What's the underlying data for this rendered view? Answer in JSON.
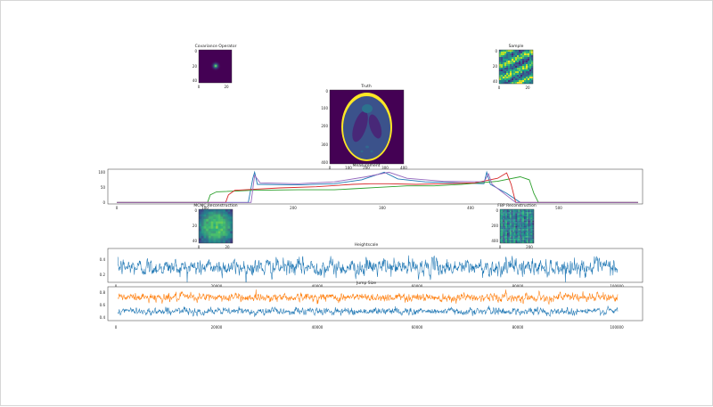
{
  "chart_data": [
    {
      "type": "heatmap",
      "title": "Covariance Operator",
      "x_ticks": [
        "0",
        "20"
      ],
      "y_ticks": [
        "0",
        "20",
        "40"
      ],
      "colormap": "viridis",
      "description_values": {
        "background": 0.0,
        "peak": 1.0
      }
    },
    {
      "type": "heatmap",
      "title": "Sample",
      "x_ticks": [
        "0",
        "20"
      ],
      "y_ticks": [
        "0",
        "20",
        "40"
      ],
      "colormap": "viridis"
    },
    {
      "type": "heatmap",
      "title": "Truth",
      "x_ticks": [
        "0",
        "100",
        "200",
        "300",
        "400"
      ],
      "y_ticks": [
        "0",
        "100",
        "200",
        "300",
        "400"
      ],
      "colormap": "viridis"
    },
    {
      "type": "line",
      "title": "Measurement",
      "x_ticks": [
        "0",
        "100",
        "200",
        "300",
        "400",
        "500"
      ],
      "y_ticks": [
        "0",
        "50",
        "100"
      ],
      "xlim": [
        -10,
        580
      ],
      "ylim": [
        -5,
        110
      ],
      "series": [
        {
          "color": "#1f77b4",
          "points": [
            [
              0,
              0
            ],
            [
              145,
              0
            ],
            [
              150,
              80
            ],
            [
              152,
              100
            ],
            [
              155,
              60
            ],
            [
              200,
              58
            ],
            [
              240,
              62
            ],
            [
              270,
              75
            ],
            [
              285,
              90
            ],
            [
              295,
              100
            ],
            [
              310,
              78
            ],
            [
              340,
              68
            ],
            [
              375,
              65
            ],
            [
              405,
              62
            ],
            [
              408,
              100
            ],
            [
              412,
              60
            ],
            [
              430,
              30
            ],
            [
              445,
              0
            ],
            [
              575,
              0
            ]
          ]
        },
        {
          "color": "#2ca02c",
          "points": [
            [
              0,
              0
            ],
            [
              100,
              0
            ],
            [
              103,
              25
            ],
            [
              110,
              35
            ],
            [
              150,
              40
            ],
            [
              200,
              42
            ],
            [
              240,
              42
            ],
            [
              260,
              45
            ],
            [
              290,
              50
            ],
            [
              320,
              55
            ],
            [
              350,
              55
            ],
            [
              380,
              60
            ],
            [
              420,
              70
            ],
            [
              445,
              85
            ],
            [
              455,
              75
            ],
            [
              460,
              30
            ],
            [
              465,
              0
            ],
            [
              575,
              0
            ]
          ]
        },
        {
          "color": "#d62728",
          "points": [
            [
              0,
              0
            ],
            [
              120,
              0
            ],
            [
              123,
              25
            ],
            [
              130,
              40
            ],
            [
              180,
              48
            ],
            [
              220,
              52
            ],
            [
              260,
              60
            ],
            [
              280,
              62
            ],
            [
              300,
              62
            ],
            [
              330,
              60
            ],
            [
              360,
              62
            ],
            [
              395,
              65
            ],
            [
              420,
              80
            ],
            [
              430,
              98
            ],
            [
              435,
              60
            ],
            [
              440,
              0
            ],
            [
              575,
              0
            ]
          ]
        },
        {
          "color": "#9467bd",
          "points": [
            [
              0,
              0
            ],
            [
              148,
              0
            ],
            [
              152,
              90
            ],
            [
              158,
              65
            ],
            [
              200,
              62
            ],
            [
              240,
              68
            ],
            [
              275,
              85
            ],
            [
              300,
              100
            ],
            [
              320,
              80
            ],
            [
              360,
              70
            ],
            [
              405,
              68
            ],
            [
              410,
              95
            ],
            [
              414,
              60
            ],
            [
              440,
              0
            ],
            [
              575,
              0
            ]
          ]
        }
      ]
    },
    {
      "type": "heatmap",
      "title": "MCMC Reconstruction",
      "x_ticks": [
        "0",
        "20"
      ],
      "y_ticks": [
        "0",
        "20",
        "40"
      ],
      "colormap": "viridis"
    },
    {
      "type": "heatmap",
      "title": "FBP Reconstruction",
      "x_ticks": [
        "0",
        "200"
      ],
      "y_ticks": [
        "0",
        "200",
        "400"
      ],
      "colormap": "viridis"
    },
    {
      "type": "line",
      "title": "Heightscale",
      "x_ticks": [
        "0",
        "20000",
        "40000",
        "60000",
        "80000",
        "100000"
      ],
      "y_ticks": [
        "0.2",
        "0.4"
      ],
      "xlim": [
        -2000,
        105000
      ],
      "ylim": [
        0.1,
        0.55
      ],
      "series": [
        {
          "color": "#1f77b4",
          "mean": 0.3,
          "spread": 0.09,
          "n_samples": 100000
        }
      ]
    },
    {
      "type": "line",
      "title": "Jump Size",
      "x_ticks": [
        "0",
        "20000",
        "40000",
        "60000",
        "80000",
        "100000"
      ],
      "y_ticks": [
        "0.4",
        "0.6",
        "0.8"
      ],
      "xlim": [
        -2000,
        105000
      ],
      "ylim": [
        0.32,
        0.9
      ],
      "series": [
        {
          "color": "#ff7f0e",
          "mean": 0.72,
          "spread": 0.06,
          "n_samples": 100000
        },
        {
          "color": "#1f77b4",
          "mean": 0.48,
          "spread": 0.05,
          "n_samples": 100000
        }
      ]
    }
  ]
}
